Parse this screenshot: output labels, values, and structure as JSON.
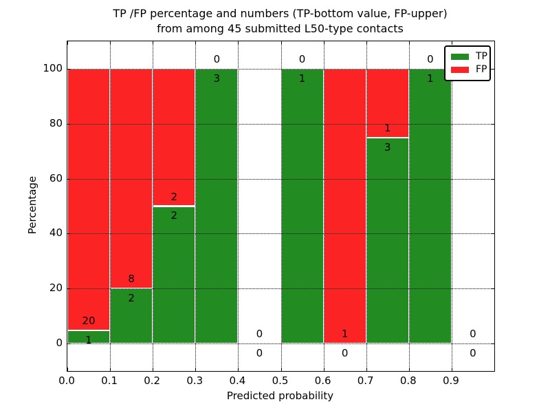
{
  "title": {
    "line1": "TP /FP percentage and numbers (TP-bottom value, FP-upper)",
    "line2": "from among 45 submitted L50-type contacts"
  },
  "axes": {
    "xlabel": "Predicted probability",
    "ylabel": "Percentage",
    "xtick_labels": [
      "0.0",
      "0.1",
      "0.2",
      "0.3",
      "0.4",
      "0.5",
      "0.6",
      "0.7",
      "0.8",
      "0.9"
    ],
    "ytick_labels": [
      "0",
      "20",
      "40",
      "60",
      "80",
      "100"
    ]
  },
  "legend": {
    "entries": [
      {
        "label": "TP",
        "color": "#228b22"
      },
      {
        "label": "FP",
        "color": "#fb2323"
      }
    ]
  },
  "chart_data": {
    "type": "bar",
    "stacked": true,
    "title": "TP /FP percentage and numbers (TP-bottom value, FP-upper) from among 45 submitted L50-type contacts",
    "xlabel": "Predicted probability",
    "ylabel": "Percentage",
    "total_contacts": 45,
    "x_bin_edges": [
      0.0,
      0.1,
      0.2,
      0.3,
      0.4,
      0.5,
      0.6,
      0.7,
      0.8,
      0.9,
      1.0
    ],
    "categories": [
      "0.0-0.1",
      "0.1-0.2",
      "0.2-0.3",
      "0.3-0.4",
      "0.4-0.5",
      "0.5-0.6",
      "0.6-0.7",
      "0.7-0.8",
      "0.8-0.9",
      "0.9-1.0"
    ],
    "series": [
      {
        "name": "TP",
        "color": "#228b22",
        "counts": [
          1,
          2,
          2,
          3,
          0,
          1,
          0,
          3,
          1,
          0
        ],
        "percent": [
          4.76,
          20,
          50,
          100,
          0,
          100,
          0,
          75,
          100,
          0
        ]
      },
      {
        "name": "FP",
        "color": "#fb2323",
        "counts": [
          20,
          8,
          2,
          0,
          0,
          0,
          1,
          1,
          0,
          0
        ],
        "percent": [
          95.24,
          80,
          50,
          0,
          0,
          0,
          100,
          25,
          0,
          0
        ]
      }
    ],
    "xticks": [
      0.0,
      0.1,
      0.2,
      0.3,
      0.4,
      0.5,
      0.6,
      0.7,
      0.8,
      0.9
    ],
    "yticks": [
      0,
      20,
      40,
      60,
      80,
      100
    ],
    "xlim": [
      0.0,
      1.0
    ],
    "ylim": [
      -10,
      110
    ],
    "grid": "dotted",
    "grid_above_bars": true,
    "legend_position": "upper right"
  }
}
